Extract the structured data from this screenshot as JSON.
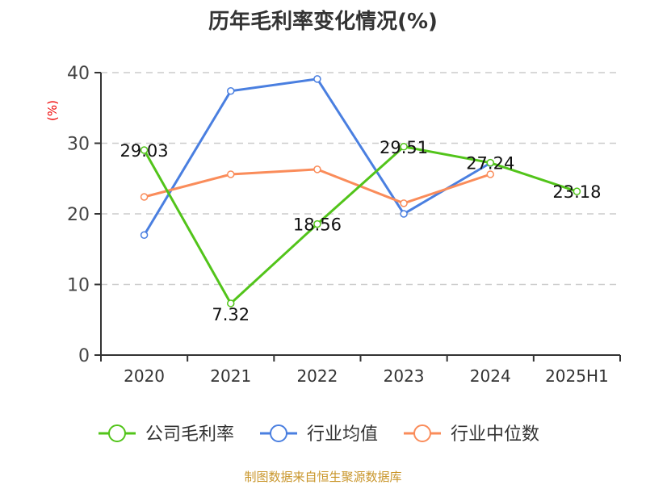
{
  "chart_data": {
    "type": "line",
    "title": "历年毛利率变化情况(%)",
    "ylabel": "(%)",
    "categories": [
      "2020",
      "2021",
      "2022",
      "2023",
      "2024",
      "2025H1"
    ],
    "ylim": [
      0,
      40
    ],
    "yticks": [
      0,
      10,
      20,
      30,
      40
    ],
    "grid": true,
    "legend_position": "bottom",
    "series": [
      {
        "name": "公司毛利率",
        "color": "#52c41a",
        "values": [
          29.03,
          7.32,
          18.56,
          29.51,
          27.24,
          23.18
        ],
        "labels": [
          "29.03",
          "7.32",
          "18.56",
          "29.51",
          "27.24",
          "23.18"
        ]
      },
      {
        "name": "行业均值",
        "color": "#4a7fe0",
        "values": [
          17.0,
          37.4,
          39.1,
          20.0,
          27.2,
          null
        ]
      },
      {
        "name": "行业中位数",
        "color": "#fa8c5a",
        "values": [
          22.4,
          25.6,
          26.3,
          21.5,
          25.6,
          null
        ]
      }
    ]
  },
  "source": "制图数据来自恒生聚源数据库"
}
